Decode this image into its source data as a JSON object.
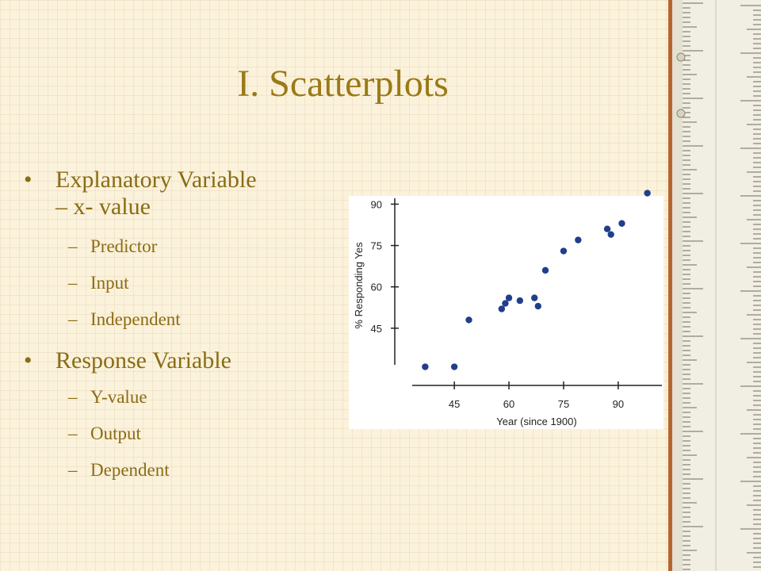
{
  "slide": {
    "title": "I. Scatterplots",
    "bullets": [
      {
        "text": "Explanatory Variable",
        "text2": "– x- value",
        "sub": [
          "Predictor",
          "Input",
          "Independent"
        ]
      },
      {
        "text": "Response Variable",
        "sub": [
          "Y-value",
          "Output",
          "Dependent"
        ]
      }
    ]
  },
  "chart_data": {
    "type": "scatter",
    "title": "",
    "xlabel": "Year (since 1900)",
    "ylabel": "% Responding Yes",
    "xlim": [
      33,
      102
    ],
    "ylim": [
      30,
      93
    ],
    "xticks": [
      45,
      60,
      75,
      90
    ],
    "yticks": [
      45,
      60,
      75,
      90
    ],
    "grid": false,
    "point_color": "#1f3f8a",
    "x": [
      37,
      45,
      49,
      58,
      59,
      60,
      63,
      67,
      68,
      70,
      75,
      79,
      87,
      88,
      91,
      98
    ],
    "y": [
      31,
      31,
      48,
      52,
      54,
      56,
      55,
      56,
      53,
      66,
      73,
      77,
      81,
      79,
      83,
      94
    ]
  },
  "colors": {
    "title": "#9a7a17",
    "text": "#8a6c14",
    "background": "#fbf2dc"
  }
}
